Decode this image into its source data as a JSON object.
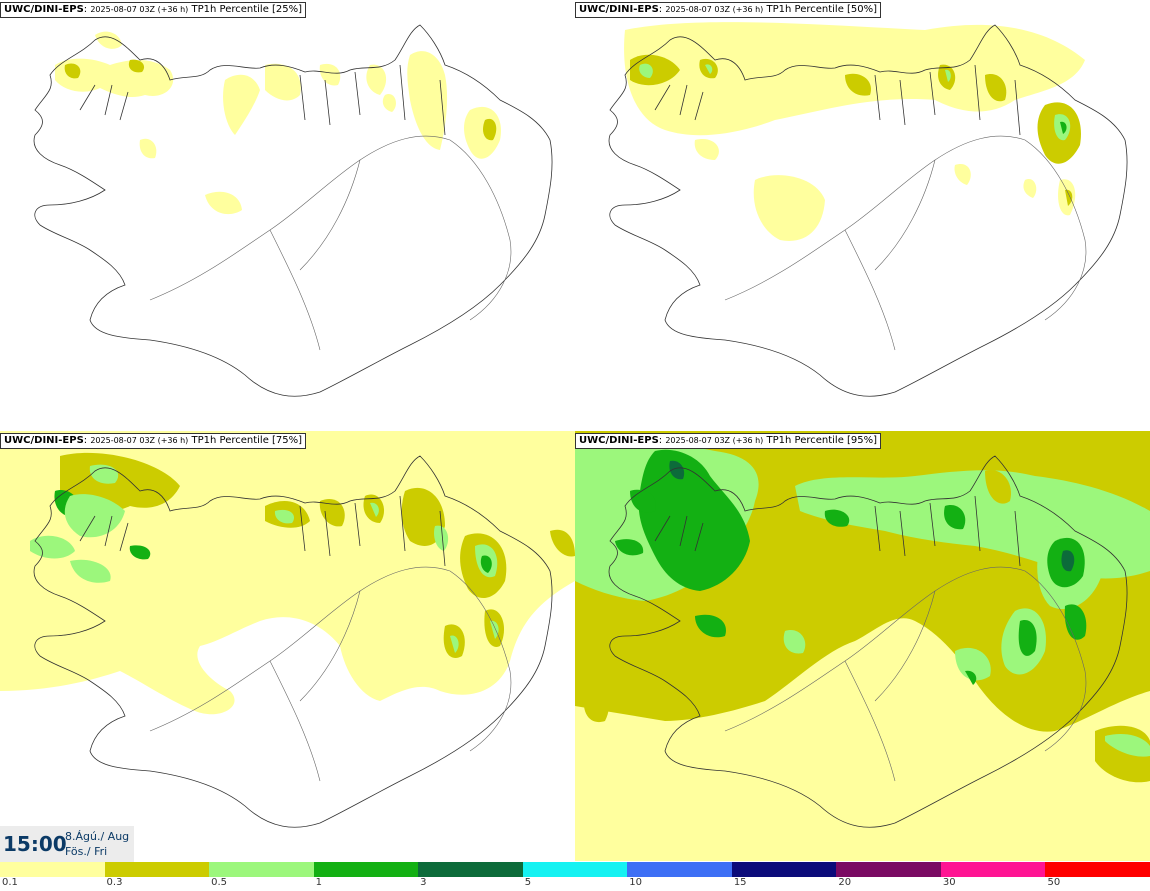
{
  "panels": [
    {
      "model": "UWC/DINI-EPS",
      "run": "2025-08-07 03Z (+36 h)",
      "field": "TP1h Percentile [25%]"
    },
    {
      "model": "UWC/DINI-EPS",
      "run": "2025-08-07 03Z (+36 h)",
      "field": "TP1h Percentile [50%]"
    },
    {
      "model": "UWC/DINI-EPS",
      "run": "2025-08-07 03Z (+36 h)",
      "field": "TP1h Percentile [75%]"
    },
    {
      "model": "UWC/DINI-EPS",
      "run": "2025-08-07 03Z (+36 h)",
      "field": "TP1h Percentile [95%]"
    }
  ],
  "valid_time": {
    "hour": "15:00",
    "date": "8.Ágú./ Aug",
    "day": "Fös./ Fri"
  },
  "legend": {
    "colors": [
      "#ffff9e",
      "#cccc00",
      "#9cf77c",
      "#13b013",
      "#0c6b3a",
      "#15f2f2",
      "#3d6ff5",
      "#0b0b7a",
      "#7a0a63",
      "#ff1493",
      "#ff0000"
    ],
    "labels": [
      "0.1",
      "0.3",
      "0.5",
      "1",
      "3",
      "5",
      "10",
      "15",
      "20",
      "30",
      "50"
    ]
  },
  "palette": {
    "light_yellow": "#ffff9e",
    "olive": "#cccc00",
    "light_green": "#9cf77c",
    "green": "#13b013",
    "dark_green": "#0c6b3a"
  }
}
